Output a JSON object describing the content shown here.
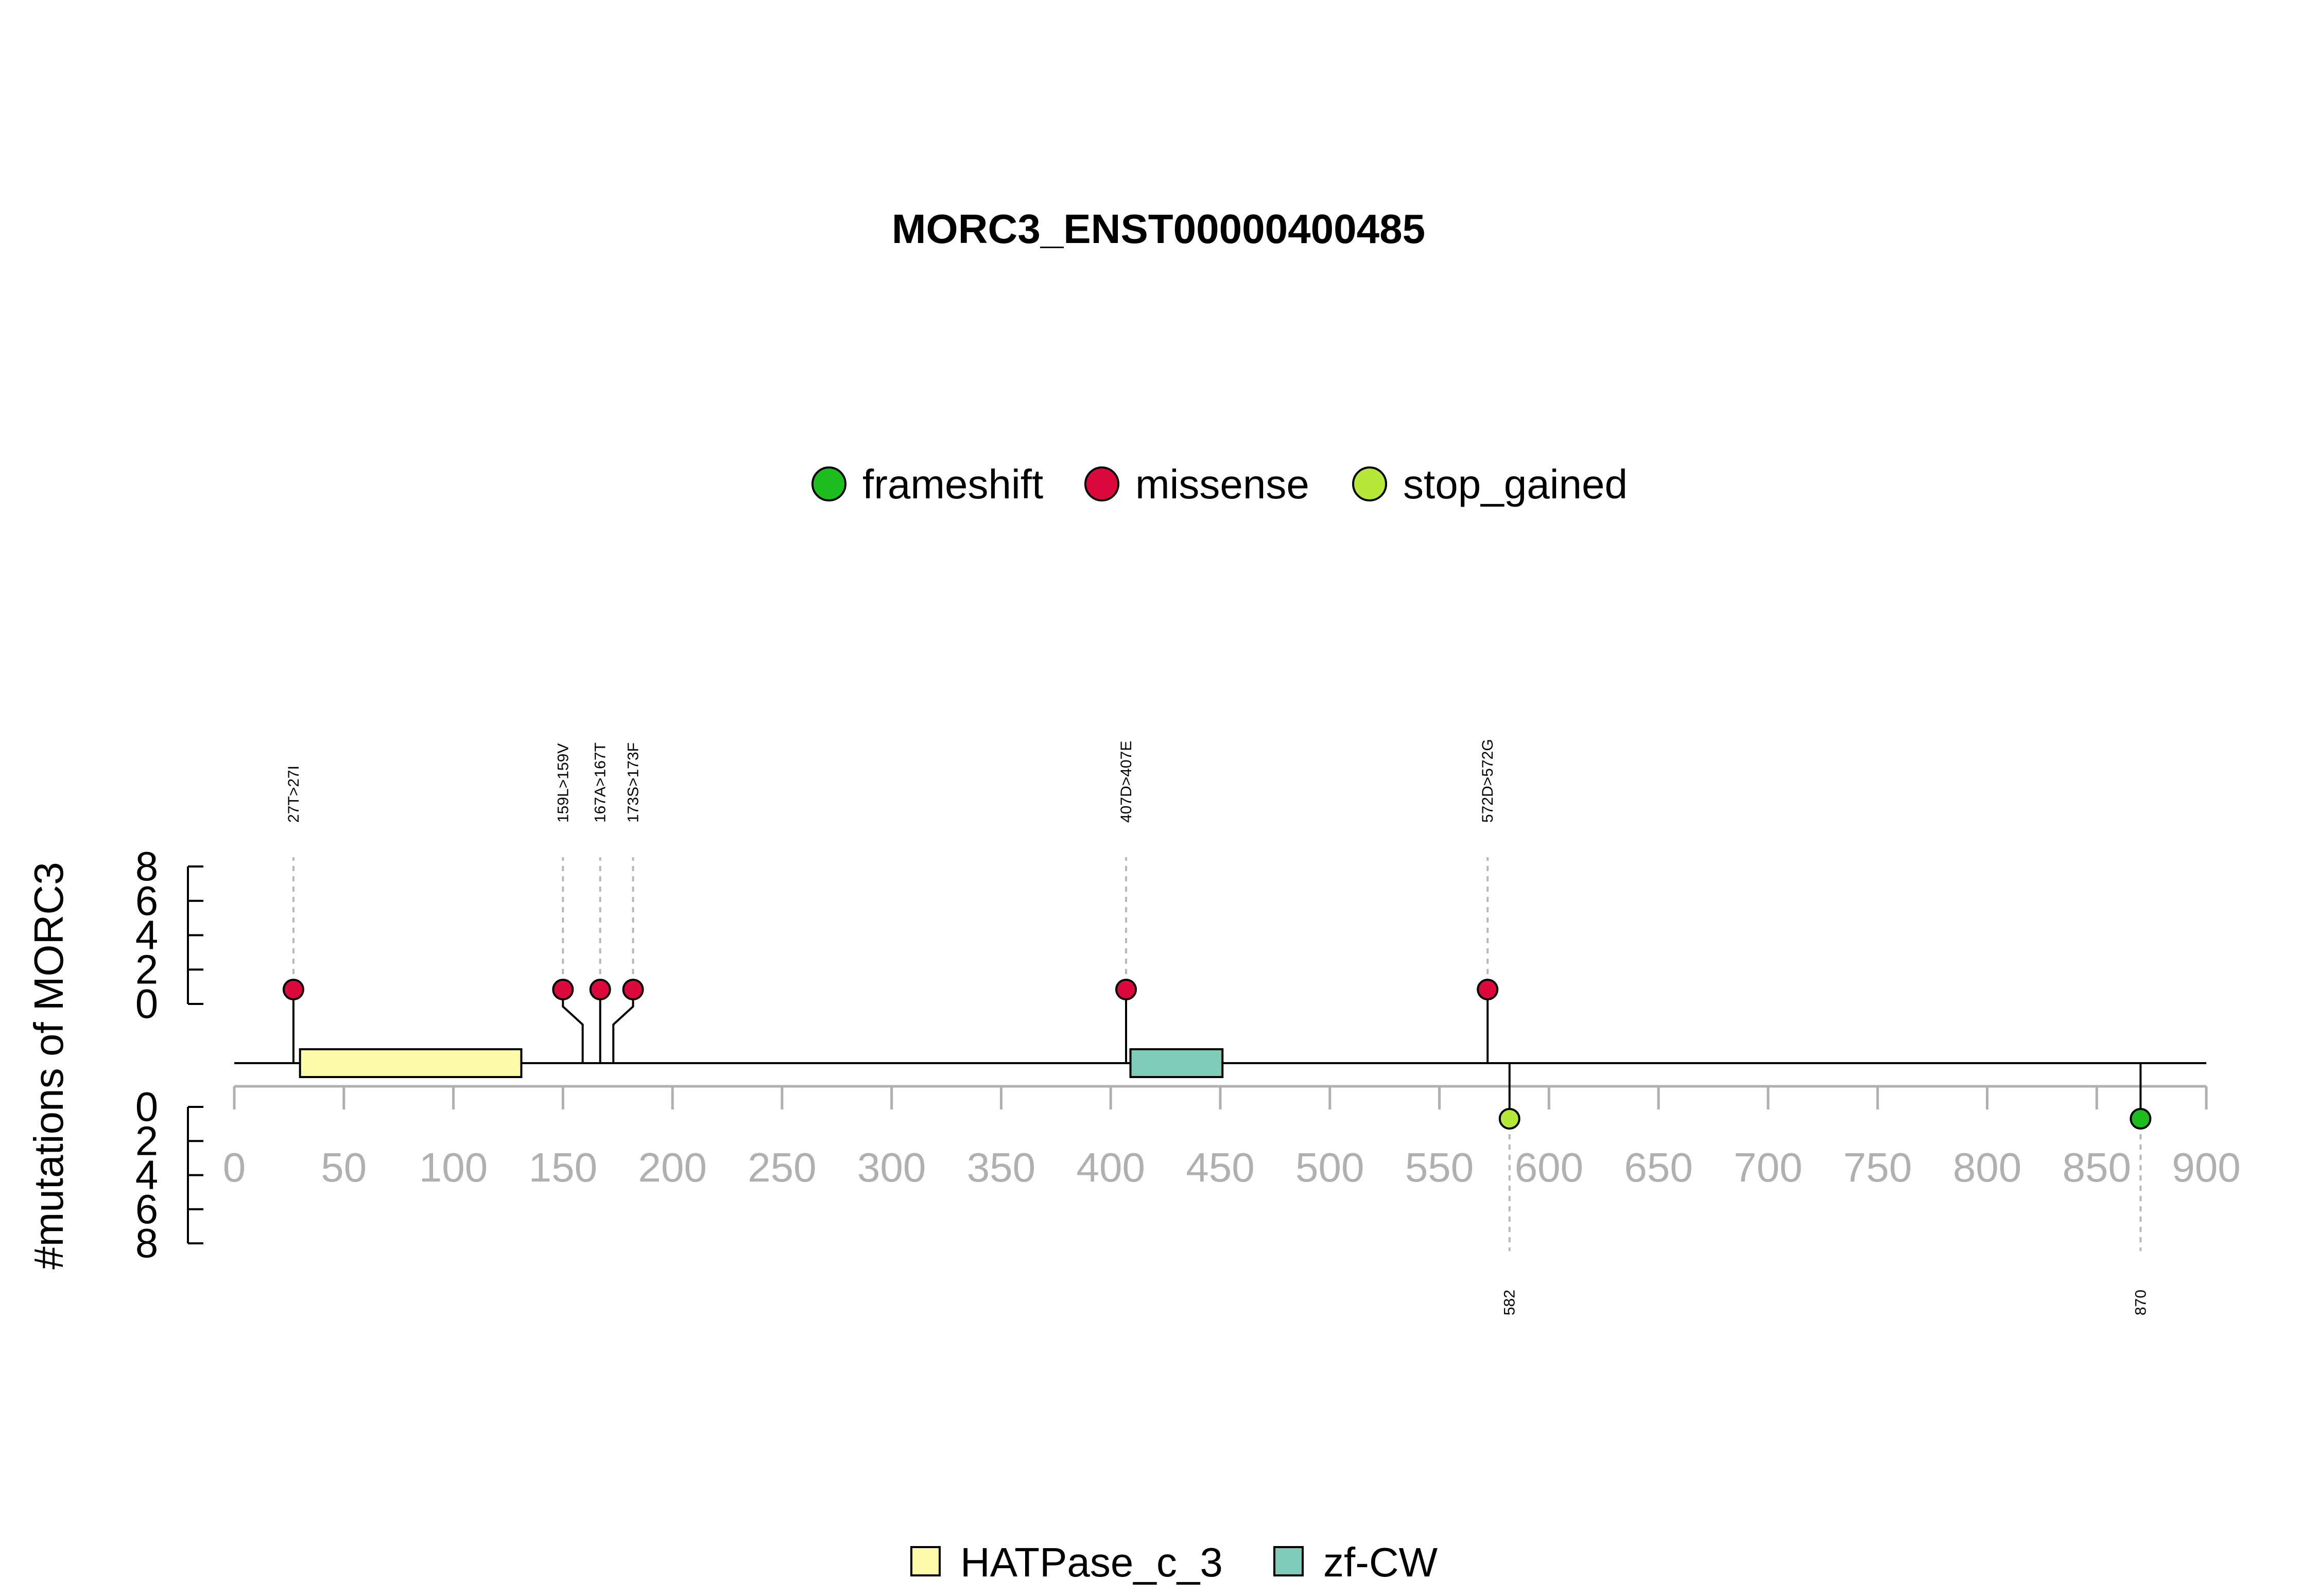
{
  "chart_data": {
    "type": "lollipop",
    "title": "MORC3_ENST00000400485",
    "ylabel": "#mutations of MORC3",
    "x_range": [
      0,
      900
    ],
    "x_ticks": [
      0,
      50,
      100,
      150,
      200,
      250,
      300,
      350,
      400,
      450,
      500,
      550,
      600,
      650,
      700,
      750,
      800,
      850,
      900
    ],
    "y_ticks": [
      0,
      2,
      4,
      6,
      8
    ],
    "y_range_top": [
      0,
      8
    ],
    "y_range_bottom": [
      0,
      8
    ],
    "protein_length": 900,
    "legend_mutations": [
      {
        "name": "frameshift",
        "color": "#1dbd1d"
      },
      {
        "name": "missense",
        "color": "#dc0a3c"
      },
      {
        "name": "stop_gained",
        "color": "#b5e838"
      }
    ],
    "legend_domains": [
      {
        "name": "HATPase_c_3",
        "color": "#fbfba8"
      },
      {
        "name": "zf-CW",
        "color": "#7ecbb8"
      }
    ],
    "domains": [
      {
        "name": "HATPase_c_3",
        "start": 30,
        "end": 131,
        "color": "#fbfba8"
      },
      {
        "name": "zf-CW",
        "start": 409,
        "end": 451,
        "color": "#7ecbb8"
      }
    ],
    "mutations_top": [
      {
        "position": 27,
        "label_position": 27,
        "label": "27T>27I",
        "type": "missense",
        "count": 1
      },
      {
        "position": 159,
        "label_position": 150,
        "label": "159L>159V",
        "type": "missense",
        "count": 1
      },
      {
        "position": 167,
        "label_position": 167,
        "label": "167A>167T",
        "type": "missense",
        "count": 1
      },
      {
        "position": 173,
        "label_position": 182,
        "label": "173S>173F",
        "type": "missense",
        "count": 1
      },
      {
        "position": 407,
        "label_position": 407,
        "label": "407D>407E",
        "type": "missense",
        "count": 1
      },
      {
        "position": 572,
        "label_position": 572,
        "label": "572D>572G",
        "type": "missense",
        "count": 1
      }
    ],
    "mutations_bottom": [
      {
        "position": 582,
        "label_position": 582,
        "label": "582",
        "type": "stop_gained",
        "count": 1
      },
      {
        "position": 870,
        "label_position": 870,
        "label": "870",
        "type": "frameshift",
        "count": 1
      }
    ]
  }
}
